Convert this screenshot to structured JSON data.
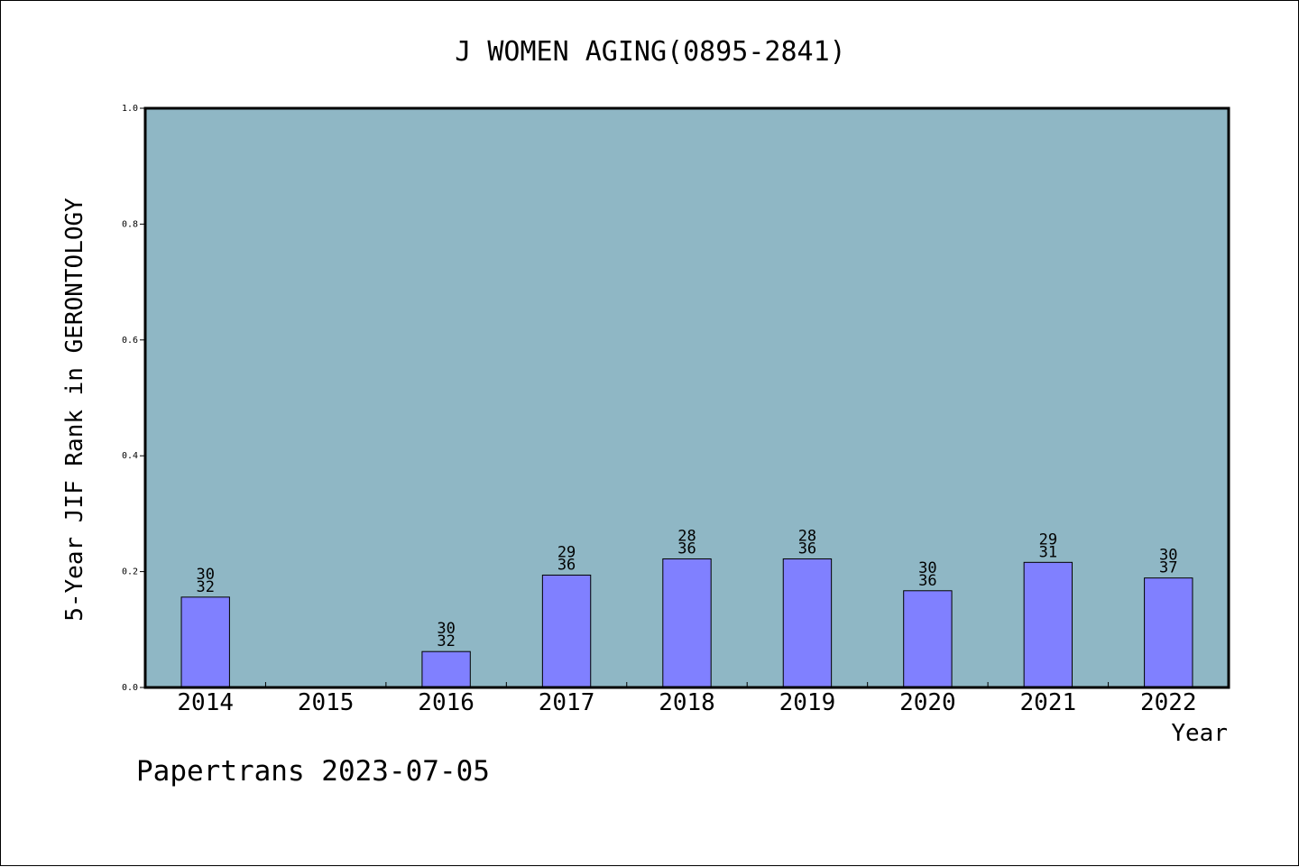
{
  "chart_data": {
    "type": "bar",
    "title": "J WOMEN AGING(0895-2841)",
    "xlabel": "Year",
    "ylabel": "5-Year JIF Rank in GERONTOLOGY",
    "ylim": [
      0,
      1.0
    ],
    "yticks": [
      "0.0",
      "0.2",
      "0.4",
      "0.6",
      "0.8",
      "1.0"
    ],
    "grid": false,
    "categories": [
      "2014",
      "2015",
      "2016",
      "2017",
      "2018",
      "2019",
      "2020",
      "2021",
      "2022"
    ],
    "values": [
      0.156,
      null,
      0.062,
      0.194,
      0.222,
      0.222,
      0.167,
      0.216,
      0.189
    ],
    "rank_labels": [
      {
        "rank": "30",
        "total": "32"
      },
      null,
      {
        "rank": "30",
        "total": "32"
      },
      {
        "rank": "29",
        "total": "36"
      },
      {
        "rank": "28",
        "total": "36"
      },
      {
        "rank": "28",
        "total": "36"
      },
      {
        "rank": "30",
        "total": "36"
      },
      {
        "rank": "29",
        "total": "31"
      },
      {
        "rank": "30",
        "total": "37"
      }
    ],
    "colors": {
      "plot_background": "#8FB7C5",
      "bar_fill": "#8080FF",
      "bar_edge": "#000000"
    }
  },
  "footer": {
    "credit": "Papertrans 2023-07-05"
  }
}
